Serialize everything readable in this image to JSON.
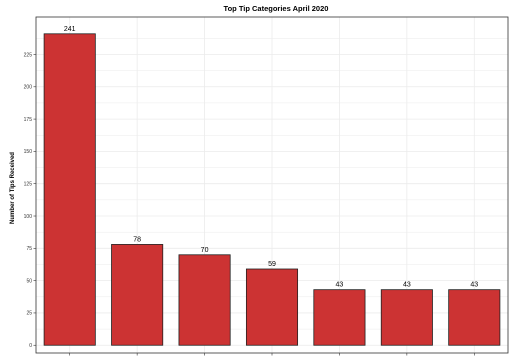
{
  "chart_data": {
    "type": "bar",
    "title": "Top Tip Categories April 2020",
    "xlabel": "",
    "ylabel": "Number of Tips Received",
    "categories": [
      "",
      "",
      "",
      "",
      "",
      "",
      ""
    ],
    "values": [
      241,
      78,
      70,
      59,
      43,
      43,
      43
    ],
    "data_labels": [
      "241",
      "78",
      "70",
      "59",
      "43",
      "43",
      "43"
    ],
    "ylim": [
      -6,
      254
    ],
    "yticks": [
      0,
      25,
      50,
      75,
      100,
      125,
      150,
      175,
      200,
      225
    ],
    "grid": true,
    "legend": "none",
    "colors": {
      "bar": "#cc3333",
      "bar_stroke": "#222222",
      "panel_border": "#333333",
      "grid": "#ebebeb"
    }
  }
}
